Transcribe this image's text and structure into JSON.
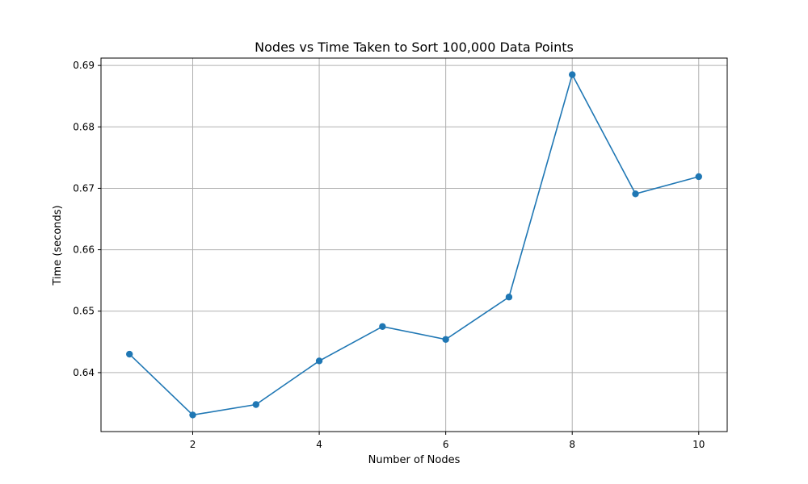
{
  "chart_data": {
    "type": "line",
    "title": "Nodes vs Time Taken to Sort 100,000 Data Points",
    "xlabel": "Number of Nodes",
    "ylabel": "Time (seconds)",
    "x": [
      1,
      2,
      3,
      4,
      5,
      6,
      7,
      8,
      9,
      10
    ],
    "series": [
      {
        "values": [
          0.643,
          0.6331,
          0.6348,
          0.6419,
          0.6475,
          0.6454,
          0.6523,
          0.6885,
          0.6691,
          0.6719
        ],
        "marker": "circle"
      }
    ],
    "xlim": [
      0.55,
      10.45
    ],
    "ylim": [
      0.6304,
      0.6912
    ],
    "xticks": [
      2,
      4,
      6,
      8,
      10
    ],
    "xtick_labels": [
      "2",
      "4",
      "6",
      "8",
      "10"
    ],
    "yticks": [
      0.64,
      0.65,
      0.66,
      0.67,
      0.68,
      0.69
    ],
    "ytick_labels": [
      "0.64",
      "0.65",
      "0.66",
      "0.67",
      "0.68",
      "0.69"
    ],
    "grid": true,
    "line_color": "#1f77b4",
    "grid_color": "#b0b0b0"
  }
}
